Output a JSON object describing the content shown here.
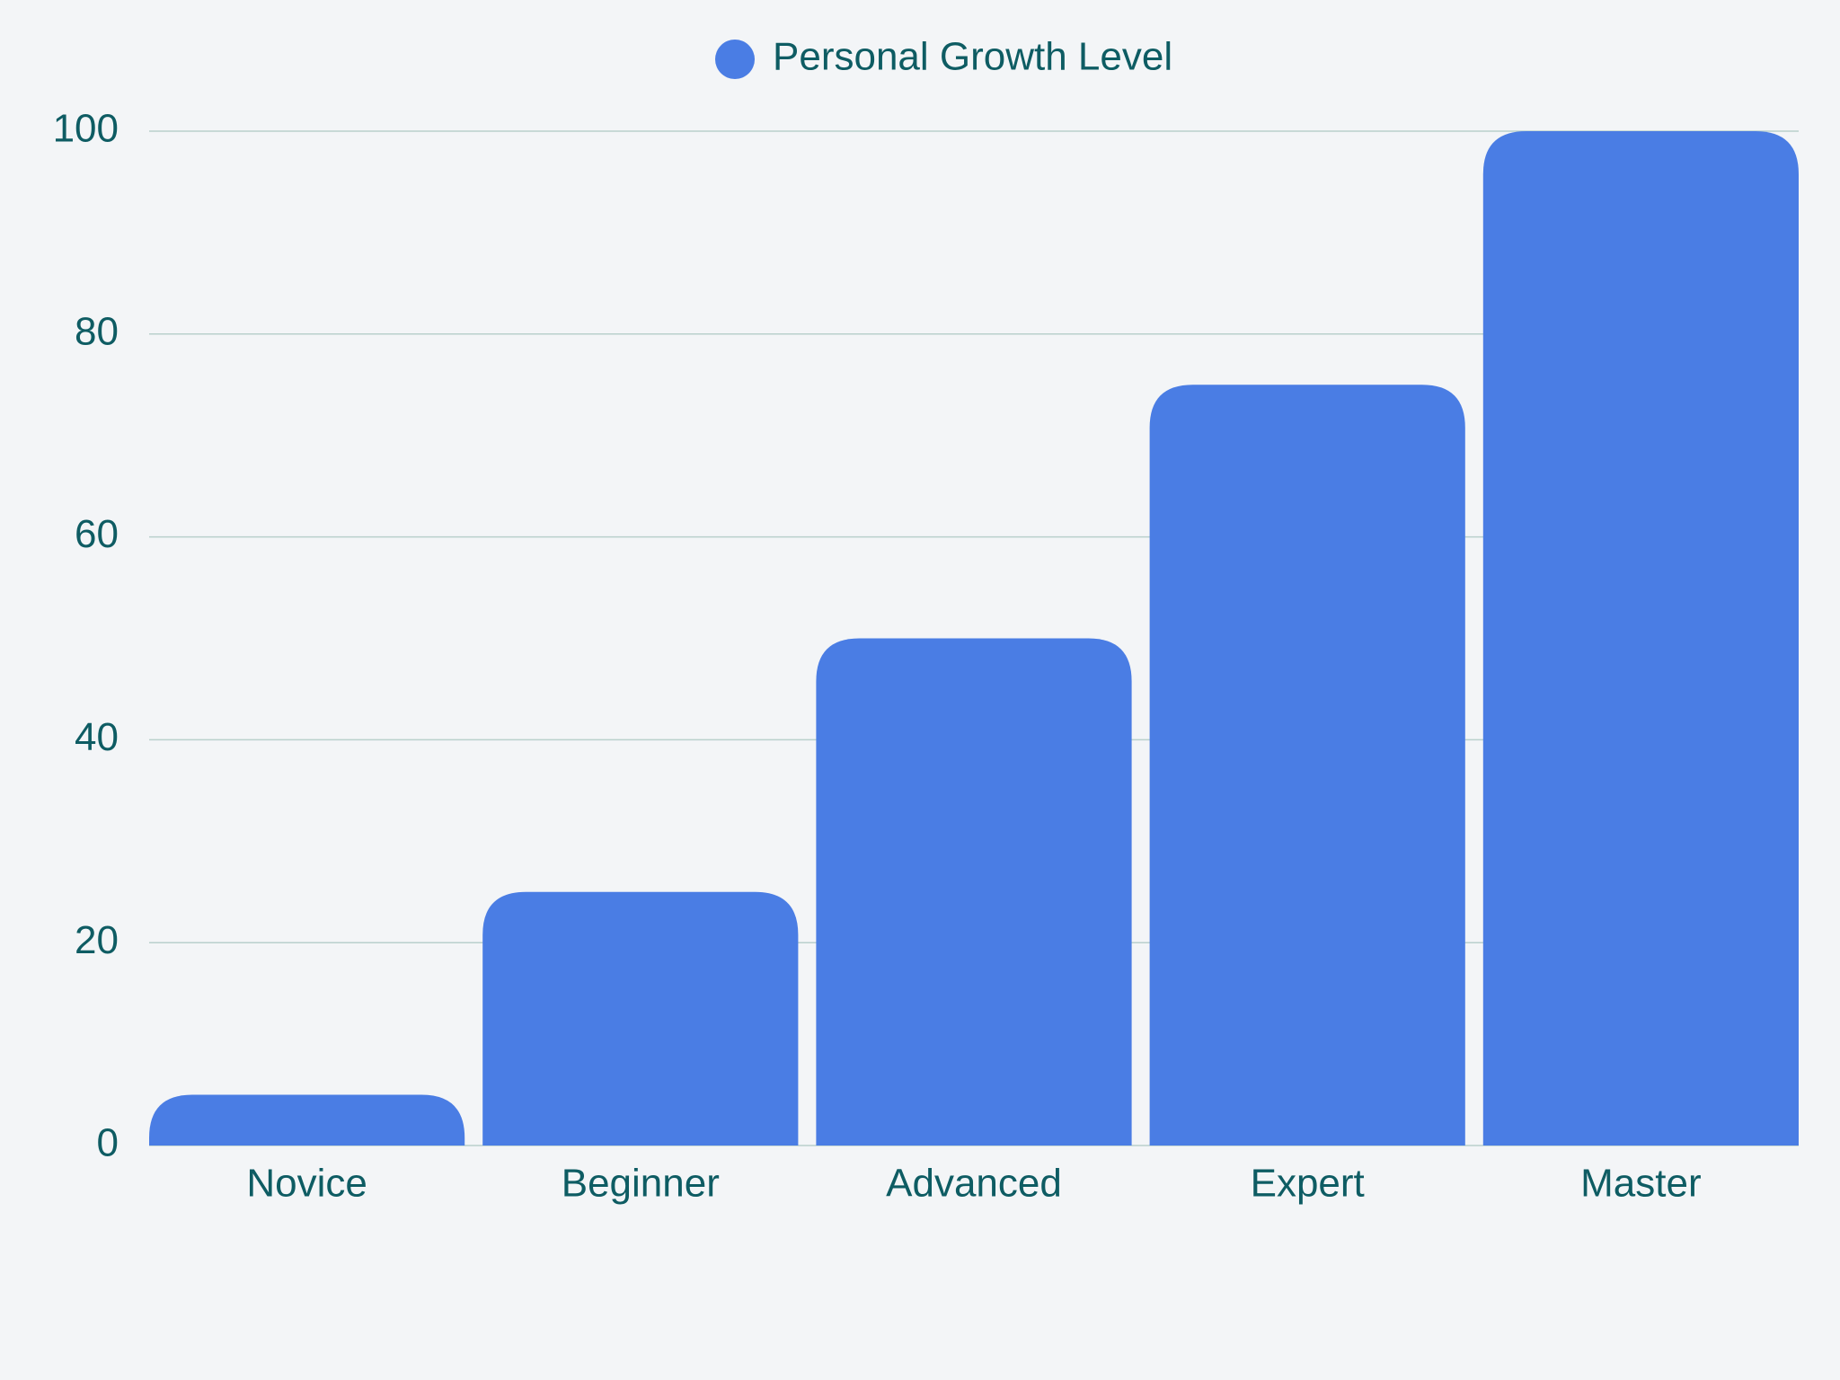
{
  "colors": {
    "background": "#f3f5f7",
    "bar": "#4a7de4",
    "text": "#0e5c63",
    "grid": "#b9d0cc"
  },
  "legend": {
    "icon": "circle-icon",
    "label": "Personal Growth Level",
    "placement": "top-center"
  },
  "chart_data": {
    "type": "bar",
    "categories": [
      "Novice",
      "Beginner",
      "Advanced",
      "Expert",
      "Master"
    ],
    "series": [
      {
        "name": "Personal Growth Level",
        "values": [
          5,
          25,
          50,
          75,
          100
        ]
      }
    ],
    "title": "",
    "xlabel": "",
    "ylabel": "",
    "ylim": [
      0,
      100
    ],
    "yticks": [
      0,
      20,
      40,
      60,
      80,
      100
    ],
    "grid": true,
    "legend_position": "top-center"
  }
}
